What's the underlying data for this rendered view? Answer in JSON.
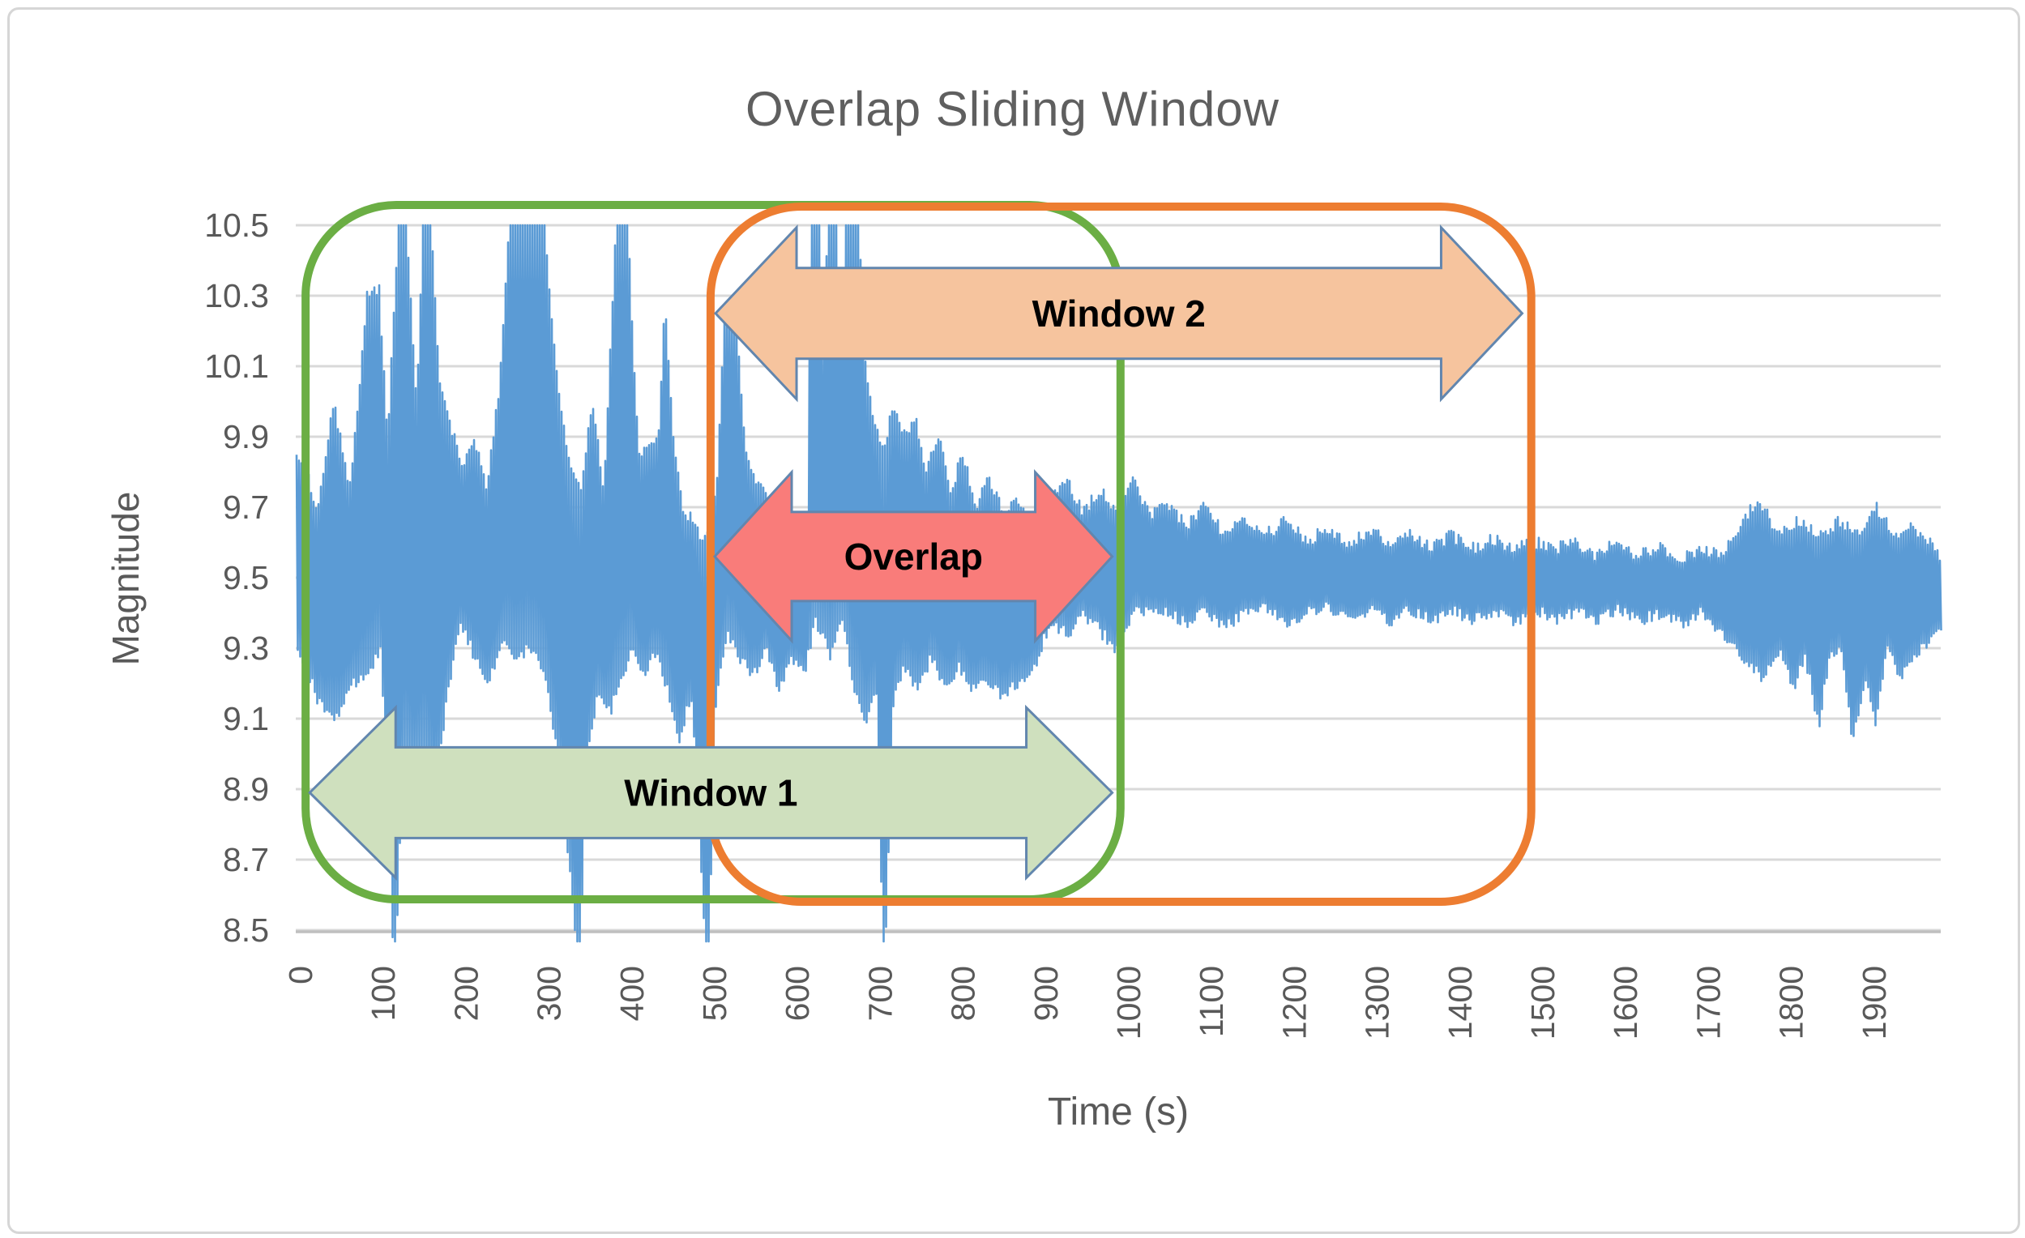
{
  "figure": {
    "background": "#ffffff",
    "border_color": "#d6d6d6"
  },
  "chart_data": {
    "type": "line",
    "title": "Overlap Sliding Window",
    "xlabel": "Time (s)",
    "ylabel": "Magnitude",
    "xlim": [
      0,
      1980
    ],
    "ylim": [
      8.5,
      10.5
    ],
    "x_ticks": [
      0,
      100,
      200,
      300,
      400,
      500,
      600,
      700,
      800,
      900,
      1000,
      1100,
      1200,
      1300,
      1400,
      1500,
      1600,
      1700,
      1800,
      1900
    ],
    "y_ticks": [
      "8.5",
      "8.7",
      "8.9",
      "9.1",
      "9.3",
      "9.5",
      "9.7",
      "9.9",
      "10.1",
      "10.3",
      "10.5"
    ],
    "grid": "horizontal-only",
    "gridline_color": "#d9d9d9",
    "axis_line_color": "#bfbfbf",
    "tick_text_color": "#595959",
    "signal_color": "#5b9bd5",
    "signal_description": "dense noisy seismic-like magnitude trace, volatile with clipped spikes before ~900 s, calm band ~9.4-9.6 after",
    "signal_envelope_top": [
      [
        0,
        9.85
      ],
      [
        20,
        9.7
      ],
      [
        40,
        10.0
      ],
      [
        60,
        9.75
      ],
      [
        80,
        10.3
      ],
      [
        95,
        10.32
      ],
      [
        105,
        9.9
      ],
      [
        118,
        10.5
      ],
      [
        128,
        10.5
      ],
      [
        140,
        10.0
      ],
      [
        148,
        10.5
      ],
      [
        158,
        10.5
      ],
      [
        168,
        10.05
      ],
      [
        180,
        9.95
      ],
      [
        195,
        9.8
      ],
      [
        210,
        9.9
      ],
      [
        225,
        9.75
      ],
      [
        240,
        10.05
      ],
      [
        252,
        10.5
      ],
      [
        295,
        10.5
      ],
      [
        308,
        10.1
      ],
      [
        322,
        9.85
      ],
      [
        338,
        9.75
      ],
      [
        352,
        10.0
      ],
      [
        366,
        9.75
      ],
      [
        380,
        10.45
      ],
      [
        396,
        10.45
      ],
      [
        408,
        9.85
      ],
      [
        432,
        9.9
      ],
      [
        440,
        10.3
      ],
      [
        450,
        9.9
      ],
      [
        462,
        9.7
      ],
      [
        475,
        9.65
      ],
      [
        488,
        9.6
      ],
      [
        502,
        9.75
      ],
      [
        512,
        10.25
      ],
      [
        525,
        10.25
      ],
      [
        538,
        9.85
      ],
      [
        555,
        9.75
      ],
      [
        572,
        9.7
      ],
      [
        590,
        9.6
      ],
      [
        605,
        9.55
      ],
      [
        612,
        9.55
      ],
      [
        616,
        10.5
      ],
      [
        626,
        10.5
      ],
      [
        631,
        10.05
      ],
      [
        636,
        10.5
      ],
      [
        648,
        10.5
      ],
      [
        653,
        10.15
      ],
      [
        658,
        10.5
      ],
      [
        674,
        10.5
      ],
      [
        682,
        10.1
      ],
      [
        692,
        9.95
      ],
      [
        704,
        9.85
      ],
      [
        716,
        10.0
      ],
      [
        728,
        9.9
      ],
      [
        742,
        9.95
      ],
      [
        756,
        9.8
      ],
      [
        770,
        9.9
      ],
      [
        785,
        9.75
      ],
      [
        800,
        9.85
      ],
      [
        815,
        9.7
      ],
      [
        832,
        9.78
      ],
      [
        850,
        9.68
      ],
      [
        868,
        9.72
      ],
      [
        886,
        9.62
      ],
      [
        905,
        9.72
      ],
      [
        925,
        9.78
      ],
      [
        945,
        9.68
      ],
      [
        965,
        9.75
      ],
      [
        985,
        9.68
      ],
      [
        1005,
        9.78
      ],
      [
        1025,
        9.68
      ],
      [
        1048,
        9.7
      ],
      [
        1070,
        9.65
      ],
      [
        1092,
        9.7
      ],
      [
        1115,
        9.62
      ],
      [
        1140,
        9.67
      ],
      [
        1165,
        9.62
      ],
      [
        1190,
        9.66
      ],
      [
        1215,
        9.6
      ],
      [
        1240,
        9.64
      ],
      [
        1265,
        9.6
      ],
      [
        1290,
        9.63
      ],
      [
        1315,
        9.6
      ],
      [
        1340,
        9.63
      ],
      [
        1365,
        9.58
      ],
      [
        1390,
        9.62
      ],
      [
        1415,
        9.58
      ],
      [
        1440,
        9.61
      ],
      [
        1465,
        9.58
      ],
      [
        1490,
        9.6
      ],
      [
        1515,
        9.58
      ],
      [
        1540,
        9.6
      ],
      [
        1565,
        9.56
      ],
      [
        1590,
        9.6
      ],
      [
        1615,
        9.56
      ],
      [
        1640,
        9.59
      ],
      [
        1665,
        9.55
      ],
      [
        1690,
        9.58
      ],
      [
        1715,
        9.56
      ],
      [
        1740,
        9.66
      ],
      [
        1762,
        9.72
      ],
      [
        1785,
        9.62
      ],
      [
        1810,
        9.66
      ],
      [
        1835,
        9.62
      ],
      [
        1858,
        9.66
      ],
      [
        1880,
        9.62
      ],
      [
        1902,
        9.7
      ],
      [
        1925,
        9.62
      ],
      [
        1948,
        9.64
      ],
      [
        1965,
        9.6
      ],
      [
        1980,
        9.56
      ]
    ],
    "signal_envelope_bottom": [
      [
        0,
        9.28
      ],
      [
        20,
        9.15
      ],
      [
        40,
        9.1
      ],
      [
        60,
        9.2
      ],
      [
        80,
        9.22
      ],
      [
        95,
        9.3
      ],
      [
        105,
        8.85
      ],
      [
        112,
        8.3
      ],
      [
        122,
        9.0
      ],
      [
        135,
        8.95
      ],
      [
        148,
        9.0
      ],
      [
        160,
        8.85
      ],
      [
        175,
        9.15
      ],
      [
        192,
        9.38
      ],
      [
        208,
        9.28
      ],
      [
        225,
        9.2
      ],
      [
        242,
        9.32
      ],
      [
        260,
        9.28
      ],
      [
        278,
        9.3
      ],
      [
        295,
        9.22
      ],
      [
        312,
        8.95
      ],
      [
        328,
        8.55
      ],
      [
        336,
        8.4
      ],
      [
        345,
        9.0
      ],
      [
        358,
        9.18
      ],
      [
        372,
        9.12
      ],
      [
        386,
        9.22
      ],
      [
        400,
        9.3
      ],
      [
        414,
        9.22
      ],
      [
        428,
        9.3
      ],
      [
        442,
        9.18
      ],
      [
        456,
        9.02
      ],
      [
        470,
        9.18
      ],
      [
        482,
        8.7
      ],
      [
        490,
        8.3
      ],
      [
        500,
        9.15
      ],
      [
        514,
        9.35
      ],
      [
        528,
        9.28
      ],
      [
        544,
        9.22
      ],
      [
        560,
        9.3
      ],
      [
        576,
        9.18
      ],
      [
        592,
        9.28
      ],
      [
        606,
        9.22
      ],
      [
        620,
        9.38
      ],
      [
        638,
        9.28
      ],
      [
        652,
        9.38
      ],
      [
        668,
        9.18
      ],
      [
        682,
        9.08
      ],
      [
        694,
        9.18
      ],
      [
        703,
        8.3
      ],
      [
        714,
        9.15
      ],
      [
        728,
        9.25
      ],
      [
        744,
        9.18
      ],
      [
        760,
        9.28
      ],
      [
        776,
        9.18
      ],
      [
        792,
        9.25
      ],
      [
        808,
        9.18
      ],
      [
        826,
        9.22
      ],
      [
        845,
        9.16
      ],
      [
        864,
        9.2
      ],
      [
        884,
        9.24
      ],
      [
        904,
        9.38
      ],
      [
        924,
        9.34
      ],
      [
        944,
        9.4
      ],
      [
        964,
        9.35
      ],
      [
        984,
        9.3
      ],
      [
        1004,
        9.4
      ],
      [
        1026,
        9.42
      ],
      [
        1048,
        9.4
      ],
      [
        1070,
        9.37
      ],
      [
        1092,
        9.41
      ],
      [
        1115,
        9.36
      ],
      [
        1140,
        9.4
      ],
      [
        1165,
        9.42
      ],
      [
        1190,
        9.37
      ],
      [
        1215,
        9.41
      ],
      [
        1240,
        9.42
      ],
      [
        1265,
        9.38
      ],
      [
        1290,
        9.41
      ],
      [
        1315,
        9.38
      ],
      [
        1340,
        9.41
      ],
      [
        1365,
        9.38
      ],
      [
        1390,
        9.41
      ],
      [
        1415,
        9.38
      ],
      [
        1440,
        9.41
      ],
      [
        1465,
        9.38
      ],
      [
        1490,
        9.41
      ],
      [
        1515,
        9.38
      ],
      [
        1540,
        9.41
      ],
      [
        1565,
        9.38
      ],
      [
        1590,
        9.41
      ],
      [
        1615,
        9.38
      ],
      [
        1640,
        9.4
      ],
      [
        1665,
        9.37
      ],
      [
        1690,
        9.4
      ],
      [
        1715,
        9.34
      ],
      [
        1740,
        9.28
      ],
      [
        1762,
        9.22
      ],
      [
        1785,
        9.3
      ],
      [
        1800,
        9.18
      ],
      [
        1815,
        9.28
      ],
      [
        1832,
        9.08
      ],
      [
        1845,
        9.28
      ],
      [
        1858,
        9.3
      ],
      [
        1872,
        9.04
      ],
      [
        1888,
        9.22
      ],
      [
        1900,
        9.08
      ],
      [
        1915,
        9.3
      ],
      [
        1930,
        9.22
      ],
      [
        1948,
        9.28
      ],
      [
        1965,
        9.32
      ],
      [
        1980,
        9.36
      ]
    ],
    "annotations": {
      "arrow_outline_color": "#6286ae",
      "window1_region": {
        "t_start": 6,
        "t_end": 990,
        "color": "#6bae44"
      },
      "window2_region": {
        "t_start": 495,
        "t_end": 1486,
        "color": "#ed7d31"
      },
      "window1_arrow": {
        "label": "Window 1",
        "t_start": 11,
        "t_end": 980,
        "mag_center": 8.89,
        "fill": "#cfe0be"
      },
      "window2_arrow": {
        "label": "Window 2",
        "t_start": 501,
        "t_end": 1475,
        "mag_center": 10.25,
        "fill": "#f6c49e"
      },
      "overlap_arrow": {
        "label": "Overlap",
        "t_start": 500,
        "t_end": 980,
        "mag_center": 9.56,
        "fill": "#f97c7a"
      }
    }
  }
}
